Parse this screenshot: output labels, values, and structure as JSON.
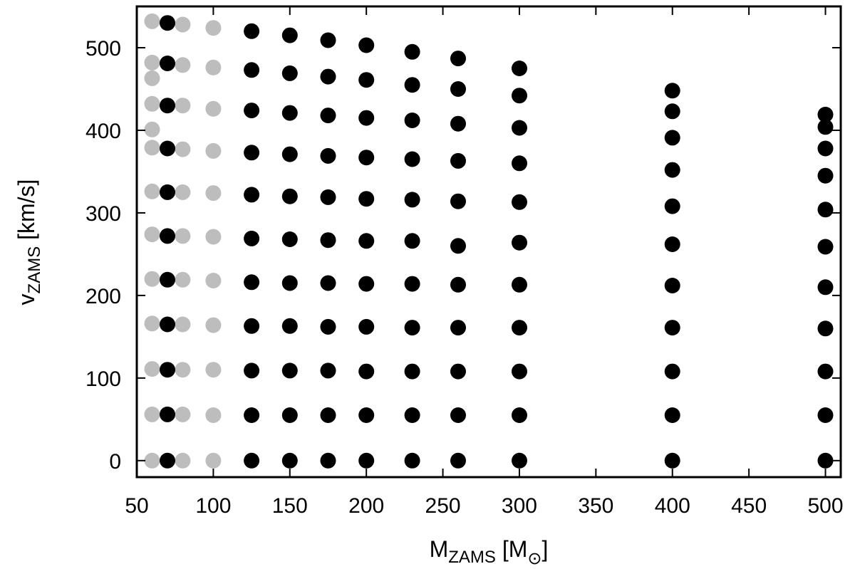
{
  "chart_data": {
    "type": "scatter",
    "title": "",
    "xlabel": {
      "main": "M",
      "sub": "ZAMS",
      "rest": " [M",
      "unit_sub": "⊙",
      "end": "]"
    },
    "ylabel": {
      "main": "v",
      "sub": "ZAMS",
      "rest": " [km/s]"
    },
    "xlim": [
      50,
      510
    ],
    "ylim": [
      -20,
      550
    ],
    "xticks": [
      50,
      100,
      150,
      200,
      250,
      300,
      350,
      400,
      450,
      500
    ],
    "yticks": [
      0,
      100,
      200,
      300,
      400,
      500
    ],
    "grid": false,
    "legend": "none",
    "colors": {
      "gray": "#bdbdbd",
      "black": "#000000",
      "axis": "#000000"
    },
    "series": [
      {
        "color": "gray",
        "points": [
          [
            60,
            0
          ],
          [
            60,
            56
          ],
          [
            60,
            111
          ],
          [
            60,
            166
          ],
          [
            60,
            220
          ],
          [
            60,
            274
          ],
          [
            60,
            326
          ],
          [
            60,
            379
          ],
          [
            60,
            401
          ],
          [
            60,
            432
          ],
          [
            60,
            463
          ],
          [
            60,
            482
          ],
          [
            60,
            532
          ],
          [
            80,
            0
          ],
          [
            80,
            56
          ],
          [
            80,
            110
          ],
          [
            80,
            165
          ],
          [
            80,
            219
          ],
          [
            80,
            272
          ],
          [
            80,
            325
          ],
          [
            80,
            377
          ],
          [
            80,
            430
          ],
          [
            80,
            479
          ],
          [
            80,
            528
          ],
          [
            100,
            0
          ],
          [
            100,
            55
          ],
          [
            100,
            110
          ],
          [
            100,
            164
          ],
          [
            100,
            218
          ],
          [
            100,
            271
          ],
          [
            100,
            324
          ],
          [
            100,
            375
          ],
          [
            100,
            426
          ],
          [
            100,
            476
          ],
          [
            100,
            524
          ]
        ]
      },
      {
        "color": "black",
        "points": [
          [
            70,
            0
          ],
          [
            70,
            56
          ],
          [
            70,
            110
          ],
          [
            70,
            165
          ],
          [
            70,
            219
          ],
          [
            70,
            272
          ],
          [
            70,
            325
          ],
          [
            70,
            378
          ],
          [
            70,
            430
          ],
          [
            70,
            481
          ],
          [
            70,
            530
          ],
          [
            125,
            0
          ],
          [
            125,
            55
          ],
          [
            125,
            109
          ],
          [
            125,
            163
          ],
          [
            125,
            216
          ],
          [
            125,
            269
          ],
          [
            125,
            322
          ],
          [
            125,
            373
          ],
          [
            125,
            424
          ],
          [
            125,
            473
          ],
          [
            125,
            520
          ],
          [
            150,
            0
          ],
          [
            150,
            55
          ],
          [
            150,
            109
          ],
          [
            150,
            163
          ],
          [
            150,
            215
          ],
          [
            150,
            268
          ],
          [
            150,
            320
          ],
          [
            150,
            371
          ],
          [
            150,
            421
          ],
          [
            150,
            469
          ],
          [
            150,
            515
          ],
          [
            175,
            0
          ],
          [
            175,
            55
          ],
          [
            175,
            109
          ],
          [
            175,
            162
          ],
          [
            175,
            215
          ],
          [
            175,
            267
          ],
          [
            175,
            319
          ],
          [
            175,
            369
          ],
          [
            175,
            418
          ],
          [
            175,
            465
          ],
          [
            175,
            509
          ],
          [
            200,
            0
          ],
          [
            200,
            55
          ],
          [
            200,
            108
          ],
          [
            200,
            162
          ],
          [
            200,
            214
          ],
          [
            200,
            266
          ],
          [
            200,
            317
          ],
          [
            200,
            367
          ],
          [
            200,
            415
          ],
          [
            200,
            461
          ],
          [
            200,
            503
          ],
          [
            230,
            0
          ],
          [
            230,
            55
          ],
          [
            230,
            108
          ],
          [
            230,
            161
          ],
          [
            230,
            214
          ],
          [
            230,
            266
          ],
          [
            230,
            316
          ],
          [
            230,
            365
          ],
          [
            230,
            412
          ],
          [
            230,
            455
          ],
          [
            230,
            495
          ],
          [
            260,
            0
          ],
          [
            260,
            55
          ],
          [
            260,
            108
          ],
          [
            260,
            161
          ],
          [
            260,
            213
          ],
          [
            260,
            260
          ],
          [
            260,
            314
          ],
          [
            260,
            363
          ],
          [
            260,
            408
          ],
          [
            260,
            450
          ],
          [
            260,
            487
          ],
          [
            300,
            0
          ],
          [
            300,
            55
          ],
          [
            300,
            108
          ],
          [
            300,
            161
          ],
          [
            300,
            213
          ],
          [
            300,
            264
          ],
          [
            300,
            313
          ],
          [
            300,
            360
          ],
          [
            300,
            403
          ],
          [
            300,
            442
          ],
          [
            300,
            475
          ],
          [
            400,
            0
          ],
          [
            400,
            55
          ],
          [
            400,
            108
          ],
          [
            400,
            161
          ],
          [
            400,
            212
          ],
          [
            400,
            262
          ],
          [
            400,
            308
          ],
          [
            400,
            352
          ],
          [
            400,
            391
          ],
          [
            400,
            423
          ],
          [
            400,
            448
          ],
          [
            500,
            0
          ],
          [
            500,
            55
          ],
          [
            500,
            108
          ],
          [
            500,
            160
          ],
          [
            500,
            210
          ],
          [
            500,
            259
          ],
          [
            500,
            304
          ],
          [
            500,
            345
          ],
          [
            500,
            378
          ],
          [
            500,
            404
          ],
          [
            500,
            419
          ]
        ]
      }
    ]
  }
}
